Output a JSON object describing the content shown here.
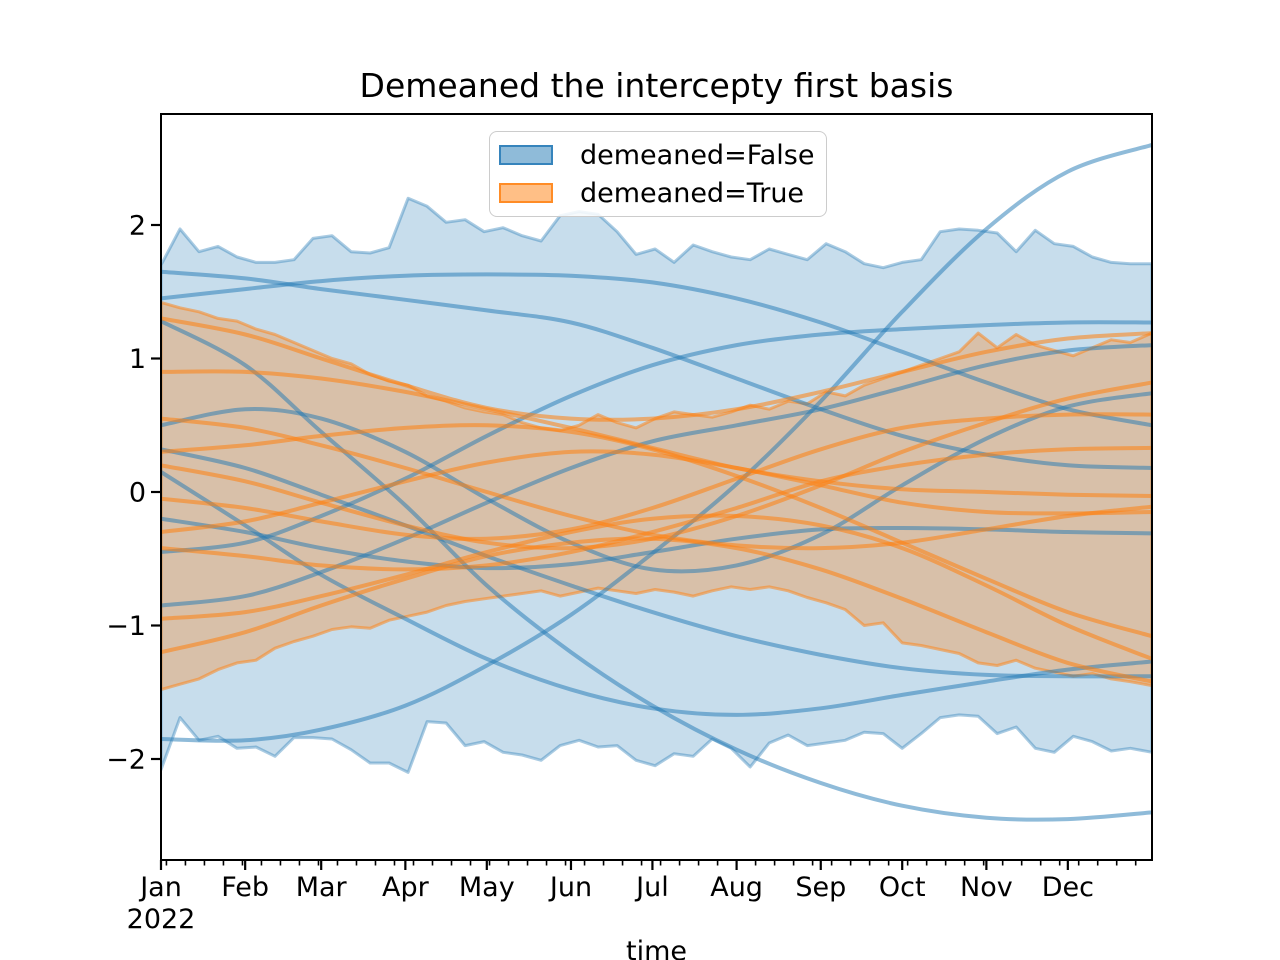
{
  "title": "Demeaned the intercepty first basis",
  "xlabel": "time",
  "legend": {
    "items": [
      {
        "label": "demeaned=False",
        "color": "#1f77b4"
      },
      {
        "label": "demeaned=True",
        "color": "#ff7f0e"
      }
    ]
  },
  "axes": {
    "y_ticks": [
      {
        "label": "2",
        "value": 2
      },
      {
        "label": "1",
        "value": 1
      },
      {
        "label": "0",
        "value": 0
      },
      {
        "label": "−1",
        "value": -1
      },
      {
        "label": "−2",
        "value": -2
      }
    ],
    "x_ticks": [
      {
        "label": "Jan",
        "day": 0
      },
      {
        "label": "Feb",
        "day": 31
      },
      {
        "label": "Mar",
        "day": 59
      },
      {
        "label": "Apr",
        "day": 90
      },
      {
        "label": "May",
        "day": 120
      },
      {
        "label": "Jun",
        "day": 151
      },
      {
        "label": "Jul",
        "day": 181
      },
      {
        "label": "Aug",
        "day": 212
      },
      {
        "label": "Sep",
        "day": 243
      },
      {
        "label": "Oct",
        "day": 273
      },
      {
        "label": "Nov",
        "day": 304
      },
      {
        "label": "Dec",
        "day": 334
      }
    ],
    "year_label": "2022",
    "minor_ticks": {
      "start_day": 2,
      "step_days": 7,
      "end_day": 363
    }
  },
  "chart_data": {
    "type": "line",
    "title": "Demeaned the intercepty first basis",
    "xlabel": "time",
    "x_axis": "Jan 2022 through Dec 2022 (days 0-365)",
    "ylim": [
      -2.76,
      2.83
    ],
    "xlim_days": [
      0,
      365
    ],
    "grid": false,
    "legend_position": "upper center",
    "month_days": [
      0,
      31,
      59,
      90,
      120,
      151,
      181,
      212,
      243,
      273,
      304,
      334,
      365
    ],
    "bands": [
      {
        "name": "demeaned=False",
        "color": "#1f77b4",
        "sampling": "weekly",
        "upper": [
          1.7,
          1.97,
          1.8,
          1.84,
          1.76,
          1.72,
          1.72,
          1.74,
          1.9,
          1.92,
          1.8,
          1.79,
          1.83,
          2.2,
          2.14,
          2.02,
          2.04,
          1.95,
          1.98,
          1.92,
          1.88,
          2.07,
          2.1,
          2.08,
          1.95,
          1.78,
          1.82,
          1.72,
          1.85,
          1.8,
          1.76,
          1.74,
          1.82,
          1.78,
          1.74,
          1.86,
          1.8,
          1.71,
          1.68,
          1.72,
          1.74,
          1.95,
          1.97,
          1.96,
          1.94,
          1.8,
          1.96,
          1.86,
          1.84,
          1.76,
          1.72,
          1.71,
          1.71
        ],
        "lower": [
          -2.08,
          -1.69,
          -1.86,
          -1.83,
          -1.92,
          -1.91,
          -1.98,
          -1.84,
          -1.84,
          -1.85,
          -1.93,
          -2.03,
          -2.03,
          -2.1,
          -1.72,
          -1.73,
          -1.9,
          -1.87,
          -1.95,
          -1.97,
          -2.01,
          -1.9,
          -1.86,
          -1.91,
          -1.9,
          -2.01,
          -2.05,
          -1.96,
          -1.98,
          -1.85,
          -1.92,
          -2.06,
          -1.88,
          -1.82,
          -1.9,
          -1.88,
          -1.86,
          -1.8,
          -1.81,
          -1.92,
          -1.81,
          -1.69,
          -1.67,
          -1.68,
          -1.81,
          -1.76,
          -1.92,
          -1.95,
          -1.83,
          -1.87,
          -1.94,
          -1.92,
          -1.95
        ]
      },
      {
        "name": "demeaned=True",
        "color": "#ff7f0e",
        "sampling": "weekly",
        "upper": [
          1.42,
          1.38,
          1.35,
          1.3,
          1.28,
          1.22,
          1.18,
          1.12,
          1.06,
          1.0,
          0.96,
          0.88,
          0.83,
          0.8,
          0.72,
          0.68,
          0.63,
          0.6,
          0.58,
          0.52,
          0.48,
          0.46,
          0.5,
          0.58,
          0.52,
          0.48,
          0.55,
          0.6,
          0.58,
          0.56,
          0.6,
          0.65,
          0.62,
          0.68,
          0.66,
          0.75,
          0.72,
          0.8,
          0.85,
          0.9,
          0.95,
          1.0,
          1.05,
          1.19,
          1.08,
          1.18,
          1.1,
          1.06,
          1.02,
          1.08,
          1.14,
          1.12,
          1.19
        ],
        "lower": [
          -1.48,
          -1.44,
          -1.4,
          -1.33,
          -1.28,
          -1.26,
          -1.17,
          -1.12,
          -1.08,
          -1.03,
          -1.01,
          -1.02,
          -0.96,
          -0.93,
          -0.9,
          -0.85,
          -0.82,
          -0.8,
          -0.78,
          -0.76,
          -0.74,
          -0.78,
          -0.75,
          -0.72,
          -0.74,
          -0.76,
          -0.73,
          -0.75,
          -0.78,
          -0.74,
          -0.71,
          -0.73,
          -0.71,
          -0.74,
          -0.79,
          -0.83,
          -0.88,
          -1.0,
          -0.98,
          -1.13,
          -1.15,
          -1.18,
          -1.21,
          -1.28,
          -1.3,
          -1.26,
          -1.32,
          -1.35,
          -1.38,
          -1.36,
          -1.4,
          -1.42,
          -1.45
        ]
      }
    ],
    "series": [
      {
        "group": "demeaned=False",
        "color": "#1f77b4",
        "values": [
          1.45,
          1.52,
          1.58,
          1.62,
          1.63,
          1.62,
          1.57,
          1.45,
          1.27,
          1.05,
          0.82,
          0.62,
          0.5
        ]
      },
      {
        "group": "demeaned=False",
        "color": "#1f77b4",
        "values": [
          1.65,
          1.6,
          1.52,
          1.44,
          1.36,
          1.27,
          1.08,
          0.85,
          0.62,
          0.42,
          0.28,
          0.2,
          0.18
        ]
      },
      {
        "group": "demeaned=False",
        "color": "#1f77b4",
        "values": [
          1.28,
          0.95,
          0.45,
          -0.1,
          -0.7,
          -1.2,
          -1.6,
          -1.93,
          -2.18,
          -2.35,
          -2.44,
          -2.45,
          -2.4
        ]
      },
      {
        "group": "demeaned=False",
        "color": "#1f77b4",
        "values": [
          -1.85,
          -1.86,
          -1.78,
          -1.6,
          -1.3,
          -0.92,
          -0.46,
          0.06,
          0.68,
          1.35,
          1.97,
          2.4,
          2.6
        ]
      },
      {
        "group": "demeaned=False",
        "color": "#1f77b4",
        "values": [
          0.15,
          -0.25,
          -0.62,
          -0.95,
          -1.25,
          -1.48,
          -1.62,
          -1.67,
          -1.62,
          -1.52,
          -1.42,
          -1.33,
          -1.27
        ]
      },
      {
        "group": "demeaned=False",
        "color": "#1f77b4",
        "values": [
          0.5,
          0.62,
          0.55,
          0.3,
          -0.05,
          -0.38,
          -0.58,
          -0.55,
          -0.32,
          0.05,
          0.4,
          0.64,
          0.74
        ]
      },
      {
        "group": "demeaned=False",
        "color": "#1f77b4",
        "values": [
          -0.45,
          -0.38,
          -0.18,
          0.1,
          0.42,
          0.72,
          0.95,
          1.1,
          1.18,
          1.22,
          1.25,
          1.27,
          1.27
        ]
      },
      {
        "group": "demeaned=False",
        "color": "#1f77b4",
        "values": [
          -0.85,
          -0.78,
          -0.6,
          -0.35,
          -0.08,
          0.18,
          0.38,
          0.5,
          0.62,
          0.78,
          0.95,
          1.06,
          1.1
        ]
      },
      {
        "group": "demeaned=False",
        "color": "#1f77b4",
        "values": [
          -0.2,
          -0.3,
          -0.42,
          -0.52,
          -0.57,
          -0.54,
          -0.45,
          -0.35,
          -0.28,
          -0.27,
          -0.28,
          -0.3,
          -0.31
        ]
      },
      {
        "group": "demeaned=False",
        "color": "#1f77b4",
        "values": [
          0.32,
          0.18,
          -0.02,
          -0.25,
          -0.48,
          -0.7,
          -0.9,
          -1.08,
          -1.22,
          -1.32,
          -1.37,
          -1.38,
          -1.38
        ]
      },
      {
        "group": "demeaned=True",
        "color": "#ff7f0e",
        "values": [
          1.3,
          1.18,
          1.0,
          0.8,
          0.63,
          0.55,
          0.55,
          0.62,
          0.75,
          0.9,
          1.05,
          1.15,
          1.19
        ]
      },
      {
        "group": "demeaned=True",
        "color": "#ff7f0e",
        "values": [
          0.9,
          0.9,
          0.85,
          0.75,
          0.62,
          0.48,
          0.33,
          0.18,
          0.08,
          0.02,
          0.0,
          -0.02,
          -0.03
        ]
      },
      {
        "group": "demeaned=True",
        "color": "#ff7f0e",
        "values": [
          0.55,
          0.48,
          0.35,
          0.18,
          0.0,
          -0.18,
          -0.32,
          -0.4,
          -0.42,
          -0.38,
          -0.28,
          -0.18,
          -0.11
        ]
      },
      {
        "group": "demeaned=True",
        "color": "#ff7f0e",
        "values": [
          0.3,
          0.35,
          0.42,
          0.48,
          0.5,
          0.45,
          0.32,
          0.12,
          -0.12,
          -0.38,
          -0.65,
          -0.9,
          -1.08
        ]
      },
      {
        "group": "demeaned=True",
        "color": "#ff7f0e",
        "values": [
          0.2,
          0.08,
          -0.08,
          -0.25,
          -0.38,
          -0.42,
          -0.35,
          -0.18,
          0.05,
          0.3,
          0.52,
          0.7,
          0.82
        ]
      },
      {
        "group": "demeaned=True",
        "color": "#ff7f0e",
        "values": [
          -0.05,
          -0.12,
          -0.22,
          -0.32,
          -0.35,
          -0.28,
          -0.12,
          0.1,
          0.32,
          0.48,
          0.55,
          0.58,
          0.58
        ]
      },
      {
        "group": "demeaned=True",
        "color": "#ff7f0e",
        "values": [
          -0.3,
          -0.22,
          -0.08,
          0.08,
          0.22,
          0.3,
          0.28,
          0.18,
          0.05,
          -0.08,
          -0.15,
          -0.16,
          -0.15
        ]
      },
      {
        "group": "demeaned=True",
        "color": "#ff7f0e",
        "values": [
          -0.42,
          -0.48,
          -0.55,
          -0.58,
          -0.55,
          -0.45,
          -0.3,
          -0.12,
          0.08,
          0.2,
          0.28,
          0.32,
          0.33
        ]
      },
      {
        "group": "demeaned=True",
        "color": "#ff7f0e",
        "values": [
          -0.95,
          -0.9,
          -0.78,
          -0.62,
          -0.45,
          -0.3,
          -0.2,
          -0.18,
          -0.25,
          -0.42,
          -0.7,
          -1.0,
          -1.25
        ]
      },
      {
        "group": "demeaned=True",
        "color": "#ff7f0e",
        "values": [
          -1.2,
          -1.05,
          -0.85,
          -0.65,
          -0.48,
          -0.38,
          -0.35,
          -0.42,
          -0.58,
          -0.8,
          -1.05,
          -1.28,
          -1.42
        ]
      }
    ]
  }
}
